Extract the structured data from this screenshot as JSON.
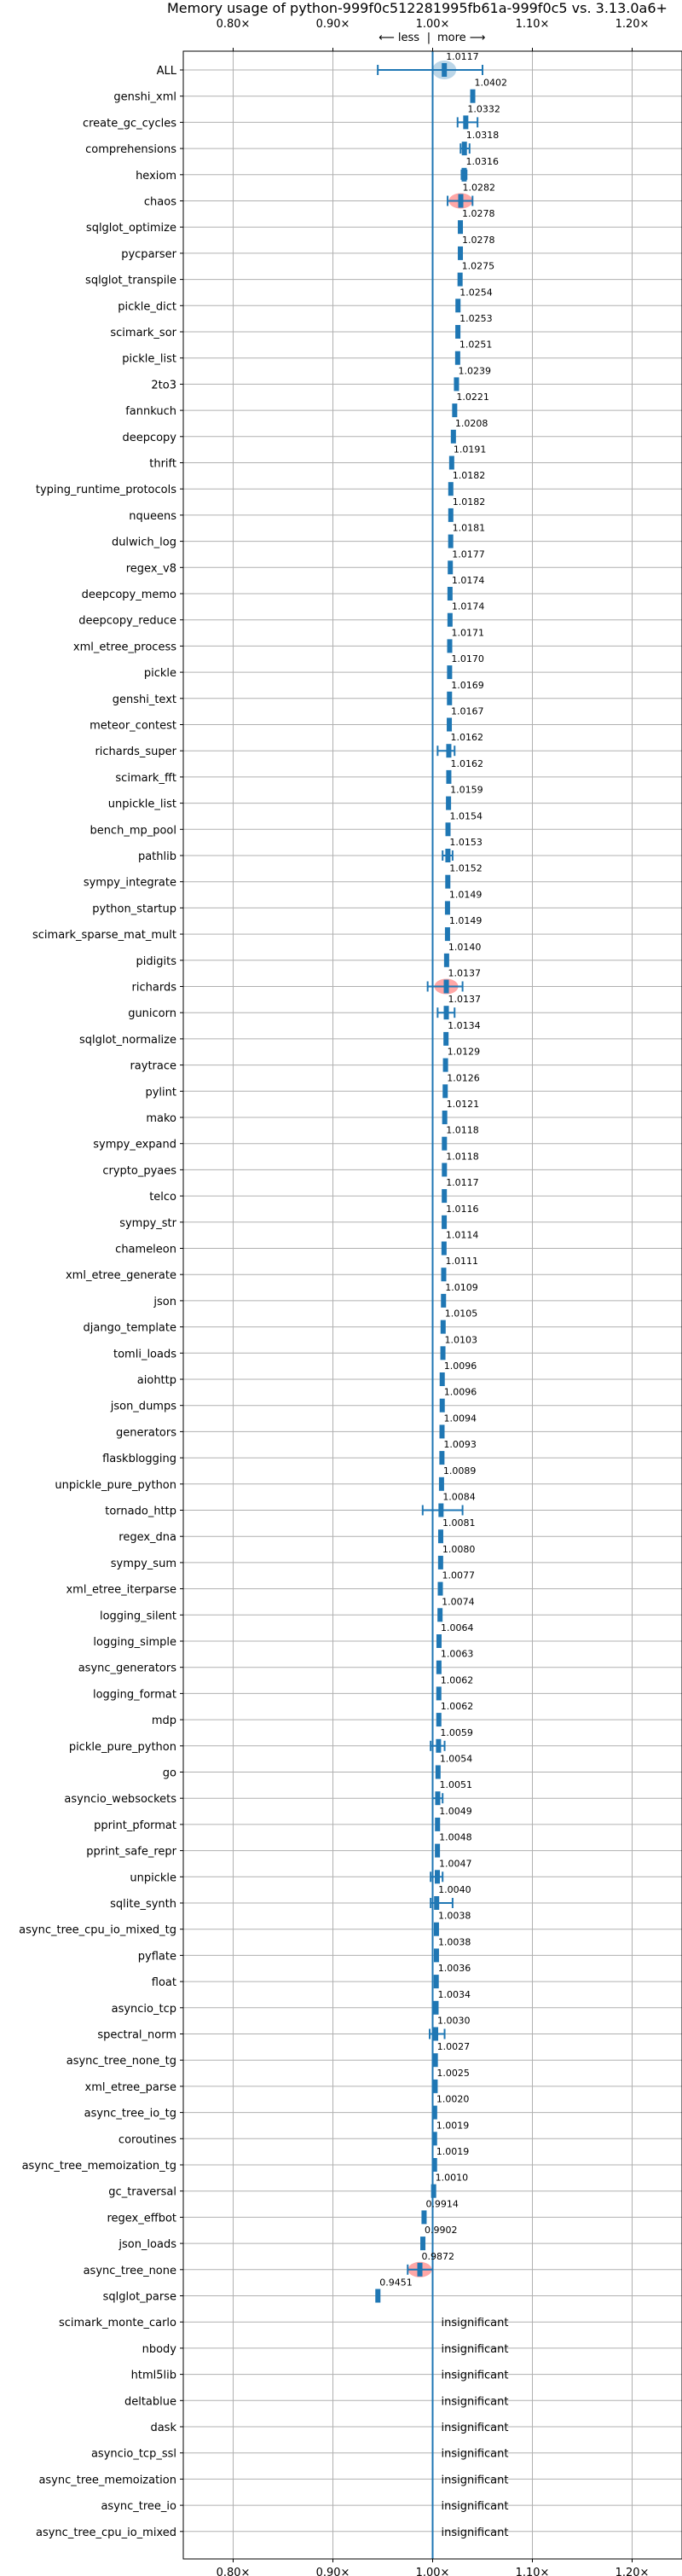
{
  "chart_data": {
    "type": "scatter",
    "title": "Memory usage of python-999f0c512281995fb61a-999f0c5 vs. 3.13.0a6+",
    "direction": {
      "less": "⟵ less",
      "sep": "|",
      "more": "more ⟶"
    },
    "xlim": [
      0.75,
      1.25
    ],
    "xticks": [
      0.8,
      0.9,
      1.0,
      1.1,
      1.2
    ],
    "xtick_labels": [
      "0.80×",
      "0.90×",
      "1.00×",
      "1.10×",
      "1.20×"
    ],
    "grid": true,
    "colors": {
      "bar": "#1f77b4",
      "highlight": "#ff9896",
      "vline": "#1f77b4",
      "grid": "#b0b0b0"
    },
    "insignificant_label": "insignificant",
    "benchmarks": [
      {
        "name": "ALL",
        "value": 1.0117,
        "label": "1.0117",
        "err": [
          0.945,
          1.05
        ],
        "highlight": false
      },
      {
        "name": "genshi_xml",
        "value": 1.0402,
        "label": "1.0402",
        "err": null,
        "highlight": false
      },
      {
        "name": "create_gc_cycles",
        "value": 1.0332,
        "label": "1.0332",
        "err": [
          1.025,
          1.045
        ],
        "highlight": false
      },
      {
        "name": "comprehensions",
        "value": 1.0318,
        "label": "1.0318",
        "err": [
          1.028,
          1.037
        ],
        "highlight": false
      },
      {
        "name": "hexiom",
        "value": 1.0316,
        "label": "1.0316",
        "err": [
          1.029,
          1.034
        ],
        "highlight": false
      },
      {
        "name": "chaos",
        "value": 1.0282,
        "label": "1.0282",
        "err": [
          1.015,
          1.04
        ],
        "highlight": true
      },
      {
        "name": "sqlglot_optimize",
        "value": 1.0278,
        "label": "1.0278",
        "err": null,
        "highlight": false
      },
      {
        "name": "pycparser",
        "value": 1.0278,
        "label": "1.0278",
        "err": null,
        "highlight": false
      },
      {
        "name": "sqlglot_transpile",
        "value": 1.0275,
        "label": "1.0275",
        "err": null,
        "highlight": false
      },
      {
        "name": "pickle_dict",
        "value": 1.0254,
        "label": "1.0254",
        "err": null,
        "highlight": false
      },
      {
        "name": "scimark_sor",
        "value": 1.0253,
        "label": "1.0253",
        "err": null,
        "highlight": false
      },
      {
        "name": "pickle_list",
        "value": 1.0251,
        "label": "1.0251",
        "err": null,
        "highlight": false
      },
      {
        "name": "2to3",
        "value": 1.0239,
        "label": "1.0239",
        "err": null,
        "highlight": false
      },
      {
        "name": "fannkuch",
        "value": 1.0221,
        "label": "1.0221",
        "err": null,
        "highlight": false
      },
      {
        "name": "deepcopy",
        "value": 1.0208,
        "label": "1.0208",
        "err": null,
        "highlight": false
      },
      {
        "name": "thrift",
        "value": 1.0191,
        "label": "1.0191",
        "err": null,
        "highlight": false
      },
      {
        "name": "typing_runtime_protocols",
        "value": 1.0182,
        "label": "1.0182",
        "err": null,
        "highlight": false
      },
      {
        "name": "nqueens",
        "value": 1.0182,
        "label": "1.0182",
        "err": null,
        "highlight": false
      },
      {
        "name": "dulwich_log",
        "value": 1.0181,
        "label": "1.0181",
        "err": null,
        "highlight": false
      },
      {
        "name": "regex_v8",
        "value": 1.0177,
        "label": "1.0177",
        "err": null,
        "highlight": false
      },
      {
        "name": "deepcopy_memo",
        "value": 1.0174,
        "label": "1.0174",
        "err": null,
        "highlight": false
      },
      {
        "name": "deepcopy_reduce",
        "value": 1.0174,
        "label": "1.0174",
        "err": null,
        "highlight": false
      },
      {
        "name": "xml_etree_process",
        "value": 1.0171,
        "label": "1.0171",
        "err": null,
        "highlight": false
      },
      {
        "name": "pickle",
        "value": 1.017,
        "label": "1.0170",
        "err": null,
        "highlight": false
      },
      {
        "name": "genshi_text",
        "value": 1.0169,
        "label": "1.0169",
        "err": null,
        "highlight": false
      },
      {
        "name": "meteor_contest",
        "value": 1.0167,
        "label": "1.0167",
        "err": null,
        "highlight": false
      },
      {
        "name": "richards_super",
        "value": 1.0162,
        "label": "1.0162",
        "err": [
          1.005,
          1.022
        ],
        "highlight": false
      },
      {
        "name": "scimark_fft",
        "value": 1.0162,
        "label": "1.0162",
        "err": null,
        "highlight": false
      },
      {
        "name": "unpickle_list",
        "value": 1.0159,
        "label": "1.0159",
        "err": null,
        "highlight": false
      },
      {
        "name": "bench_mp_pool",
        "value": 1.0154,
        "label": "1.0154",
        "err": null,
        "highlight": false
      },
      {
        "name": "pathlib",
        "value": 1.0153,
        "label": "1.0153",
        "err": [
          1.01,
          1.02
        ],
        "highlight": false
      },
      {
        "name": "sympy_integrate",
        "value": 1.0152,
        "label": "1.0152",
        "err": null,
        "highlight": false
      },
      {
        "name": "python_startup",
        "value": 1.0149,
        "label": "1.0149",
        "err": null,
        "highlight": false
      },
      {
        "name": "scimark_sparse_mat_mult",
        "value": 1.0149,
        "label": "1.0149",
        "err": null,
        "highlight": false
      },
      {
        "name": "pidigits",
        "value": 1.014,
        "label": "1.0140",
        "err": null,
        "highlight": false
      },
      {
        "name": "richards",
        "value": 1.0137,
        "label": "1.0137",
        "err": [
          0.995,
          1.03
        ],
        "highlight": true
      },
      {
        "name": "gunicorn",
        "value": 1.0137,
        "label": "1.0137",
        "err": [
          1.005,
          1.022
        ],
        "highlight": false
      },
      {
        "name": "sqlglot_normalize",
        "value": 1.0134,
        "label": "1.0134",
        "err": null,
        "highlight": false
      },
      {
        "name": "raytrace",
        "value": 1.0129,
        "label": "1.0129",
        "err": null,
        "highlight": false
      },
      {
        "name": "pylint",
        "value": 1.0126,
        "label": "1.0126",
        "err": null,
        "highlight": false
      },
      {
        "name": "mako",
        "value": 1.0121,
        "label": "1.0121",
        "err": null,
        "highlight": false
      },
      {
        "name": "sympy_expand",
        "value": 1.0118,
        "label": "1.0118",
        "err": null,
        "highlight": false
      },
      {
        "name": "crypto_pyaes",
        "value": 1.0118,
        "label": "1.0118",
        "err": null,
        "highlight": false
      },
      {
        "name": "telco",
        "value": 1.0117,
        "label": "1.0117",
        "err": null,
        "highlight": false
      },
      {
        "name": "sympy_str",
        "value": 1.0116,
        "label": "1.0116",
        "err": null,
        "highlight": false
      },
      {
        "name": "chameleon",
        "value": 1.0114,
        "label": "1.0114",
        "err": null,
        "highlight": false
      },
      {
        "name": "xml_etree_generate",
        "value": 1.0111,
        "label": "1.0111",
        "err": null,
        "highlight": false
      },
      {
        "name": "json",
        "value": 1.0109,
        "label": "1.0109",
        "err": null,
        "highlight": false
      },
      {
        "name": "django_template",
        "value": 1.0105,
        "label": "1.0105",
        "err": null,
        "highlight": false
      },
      {
        "name": "tomli_loads",
        "value": 1.0103,
        "label": "1.0103",
        "err": null,
        "highlight": false
      },
      {
        "name": "aiohttp",
        "value": 1.0096,
        "label": "1.0096",
        "err": null,
        "highlight": false
      },
      {
        "name": "json_dumps",
        "value": 1.0096,
        "label": "1.0096",
        "err": null,
        "highlight": false
      },
      {
        "name": "generators",
        "value": 1.0094,
        "label": "1.0094",
        "err": null,
        "highlight": false
      },
      {
        "name": "flaskblogging",
        "value": 1.0093,
        "label": "1.0093",
        "err": null,
        "highlight": false
      },
      {
        "name": "unpickle_pure_python",
        "value": 1.0089,
        "label": "1.0089",
        "err": null,
        "highlight": false
      },
      {
        "name": "tornado_http",
        "value": 1.0084,
        "label": "1.0084",
        "err": [
          0.99,
          1.03
        ],
        "highlight": false
      },
      {
        "name": "regex_dna",
        "value": 1.0081,
        "label": "1.0081",
        "err": null,
        "highlight": false
      },
      {
        "name": "sympy_sum",
        "value": 1.008,
        "label": "1.0080",
        "err": null,
        "highlight": false
      },
      {
        "name": "xml_etree_iterparse",
        "value": 1.0077,
        "label": "1.0077",
        "err": null,
        "highlight": false
      },
      {
        "name": "logging_silent",
        "value": 1.0074,
        "label": "1.0074",
        "err": null,
        "highlight": false
      },
      {
        "name": "logging_simple",
        "value": 1.0064,
        "label": "1.0064",
        "err": null,
        "highlight": false
      },
      {
        "name": "async_generators",
        "value": 1.0063,
        "label": "1.0063",
        "err": null,
        "highlight": false
      },
      {
        "name": "logging_format",
        "value": 1.0062,
        "label": "1.0062",
        "err": null,
        "highlight": false
      },
      {
        "name": "mdp",
        "value": 1.0062,
        "label": "1.0062",
        "err": null,
        "highlight": false
      },
      {
        "name": "pickle_pure_python",
        "value": 1.0059,
        "label": "1.0059",
        "err": [
          0.998,
          1.012
        ],
        "highlight": false
      },
      {
        "name": "go",
        "value": 1.0054,
        "label": "1.0054",
        "err": null,
        "highlight": false
      },
      {
        "name": "asyncio_websockets",
        "value": 1.0051,
        "label": "1.0051",
        "err": [
          1.0,
          1.01
        ],
        "highlight": false
      },
      {
        "name": "pprint_pformat",
        "value": 1.0049,
        "label": "1.0049",
        "err": null,
        "highlight": false
      },
      {
        "name": "pprint_safe_repr",
        "value": 1.0048,
        "label": "1.0048",
        "err": null,
        "highlight": false
      },
      {
        "name": "unpickle",
        "value": 1.0047,
        "label": "1.0047",
        "err": [
          0.998,
          1.01
        ],
        "highlight": false
      },
      {
        "name": "sqlite_synth",
        "value": 1.004,
        "label": "1.0040",
        "err": [
          0.998,
          1.02
        ],
        "highlight": false
      },
      {
        "name": "async_tree_cpu_io_mixed_tg",
        "value": 1.0038,
        "label": "1.0038",
        "err": null,
        "highlight": false
      },
      {
        "name": "pyflate",
        "value": 1.0038,
        "label": "1.0038",
        "err": null,
        "highlight": false
      },
      {
        "name": "float",
        "value": 1.0036,
        "label": "1.0036",
        "err": null,
        "highlight": false
      },
      {
        "name": "asyncio_tcp",
        "value": 1.0034,
        "label": "1.0034",
        "err": null,
        "highlight": false
      },
      {
        "name": "spectral_norm",
        "value": 1.003,
        "label": "1.0030",
        "err": [
          0.997,
          1.012
        ],
        "highlight": false
      },
      {
        "name": "async_tree_none_tg",
        "value": 1.0027,
        "label": "1.0027",
        "err": null,
        "highlight": false
      },
      {
        "name": "xml_etree_parse",
        "value": 1.0025,
        "label": "1.0025",
        "err": null,
        "highlight": false
      },
      {
        "name": "async_tree_io_tg",
        "value": 1.002,
        "label": "1.0020",
        "err": null,
        "highlight": false
      },
      {
        "name": "coroutines",
        "value": 1.0019,
        "label": "1.0019",
        "err": null,
        "highlight": false
      },
      {
        "name": "async_tree_memoization_tg",
        "value": 1.0019,
        "label": "1.0019",
        "err": null,
        "highlight": false
      },
      {
        "name": "gc_traversal",
        "value": 1.001,
        "label": "1.0010",
        "err": null,
        "highlight": false
      },
      {
        "name": "regex_effbot",
        "value": 0.9914,
        "label": "0.9914",
        "err": null,
        "highlight": false
      },
      {
        "name": "json_loads",
        "value": 0.9902,
        "label": "0.9902",
        "err": null,
        "highlight": false
      },
      {
        "name": "async_tree_none",
        "value": 0.9872,
        "label": "0.9872",
        "err": [
          0.975,
          1.0
        ],
        "highlight": true
      },
      {
        "name": "sqlglot_parse",
        "value": 0.9451,
        "label": "0.9451",
        "err": null,
        "highlight": false
      },
      {
        "name": "scimark_monte_carlo",
        "value": null,
        "label": "",
        "err": null,
        "highlight": false
      },
      {
        "name": "nbody",
        "value": null,
        "label": "",
        "err": null,
        "highlight": false
      },
      {
        "name": "html5lib",
        "value": null,
        "label": "",
        "err": null,
        "highlight": false
      },
      {
        "name": "deltablue",
        "value": null,
        "label": "",
        "err": null,
        "highlight": false
      },
      {
        "name": "dask",
        "value": null,
        "label": "",
        "err": null,
        "highlight": false
      },
      {
        "name": "asyncio_tcp_ssl",
        "value": null,
        "label": "",
        "err": null,
        "highlight": false
      },
      {
        "name": "async_tree_memoization",
        "value": null,
        "label": "",
        "err": null,
        "highlight": false
      },
      {
        "name": "async_tree_io",
        "value": null,
        "label": "",
        "err": null,
        "highlight": false
      },
      {
        "name": "async_tree_cpu_io_mixed",
        "value": null,
        "label": "",
        "err": null,
        "highlight": false
      }
    ]
  }
}
